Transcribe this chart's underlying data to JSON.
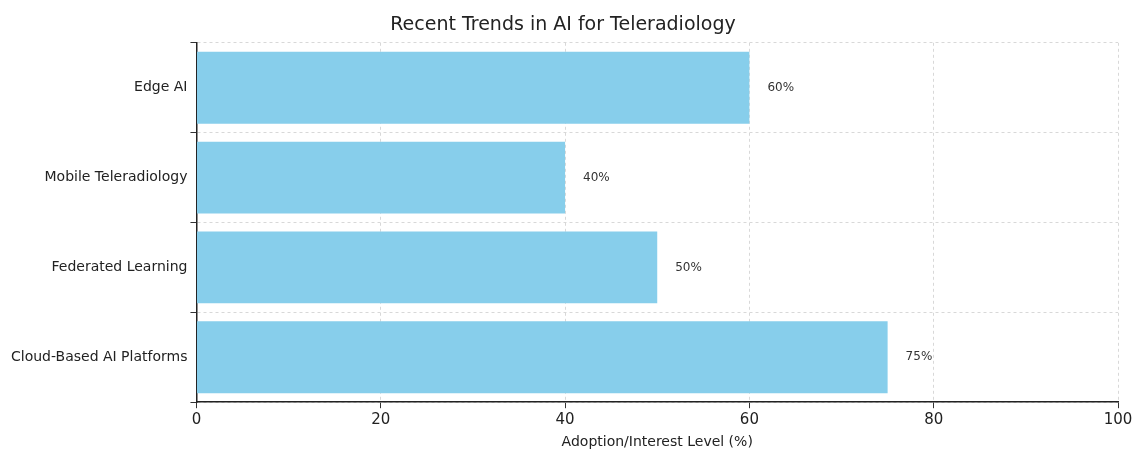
{
  "chart_data": {
    "type": "bar",
    "orientation": "horizontal",
    "title": "Recent Trends in AI for Teleradiology",
    "xlabel": "Adoption/Interest Level (%)",
    "categories": [
      "Edge AI",
      "Mobile Teleradiology",
      "Federated Learning",
      "Cloud-Based AI Platforms"
    ],
    "values": [
      60,
      40,
      50,
      75
    ],
    "value_labels": [
      "60%",
      "40%",
      "50%",
      "75%"
    ],
    "color": "#87ceeb",
    "xlim": [
      0,
      100
    ],
    "xticks": [
      0,
      20,
      40,
      60,
      80,
      100
    ],
    "grid": true,
    "legend": false
  }
}
